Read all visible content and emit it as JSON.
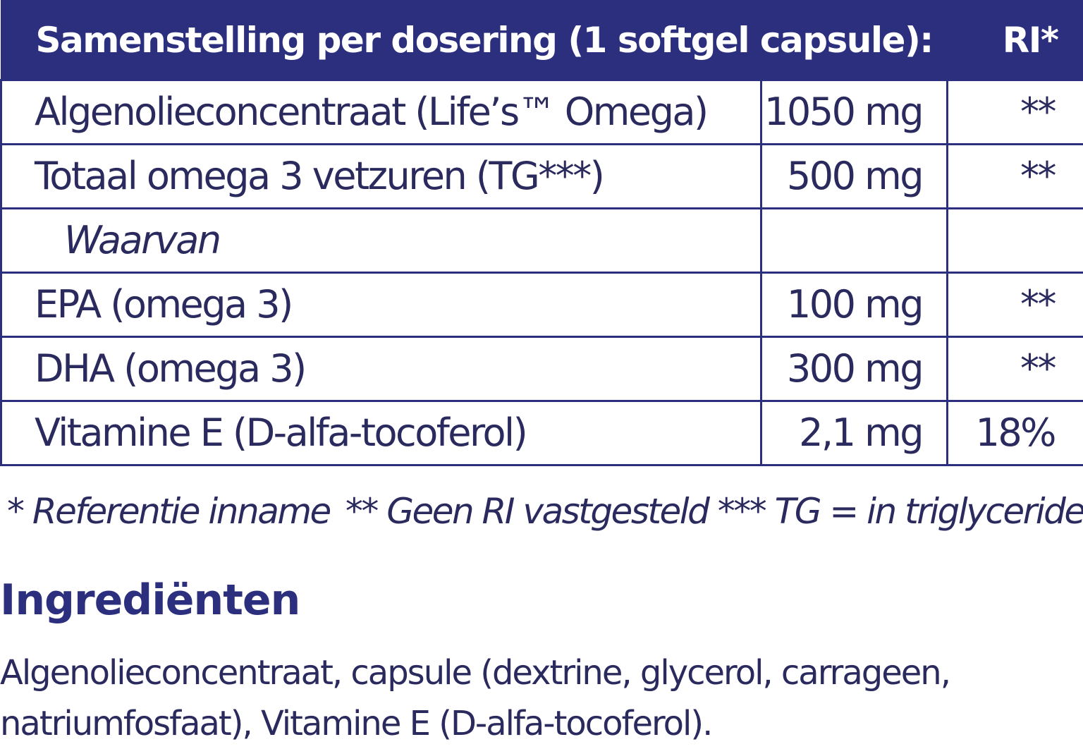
{
  "table": {
    "header": {
      "name": "Samenstelling per dosering (1 softgel capsule):",
      "ri": "RI*"
    },
    "rows": [
      {
        "name": "Algenolieconcentraat (Life’s™ Omega)",
        "amount": "1050 mg",
        "ri": "**"
      },
      {
        "name": "Totaal omega 3 vetzuren (TG***)",
        "amount": "500 mg",
        "ri": "**"
      },
      {
        "name": "Waarvan",
        "amount": "",
        "ri": ""
      },
      {
        "name": "EPA (omega 3)",
        "amount": "100 mg",
        "ri": "**"
      },
      {
        "name": "DHA (omega 3)",
        "amount": "300 mg",
        "ri": "**"
      },
      {
        "name": "Vitamine E (D-alfa-tocoferol)",
        "amount": "2,1 mg",
        "ri": "18%"
      }
    ]
  },
  "footnotes": {
    "ri": "* Referentie inname",
    "no_ri": "** Geen RI vastgesteld",
    "tg": "*** TG = in triglyceridenvorm"
  },
  "ingredients": {
    "title": "Ingrediënten",
    "text": "Algenolieconcentraat, capsule (dextrine, glycerol, carrageen, natriumfosfaat), Vitamine E (D-alfa-tocoferol)."
  },
  "colors": {
    "header_bg": "#2b2f7d",
    "text": "#2a2a5e",
    "border": "#2b2f7d"
  }
}
